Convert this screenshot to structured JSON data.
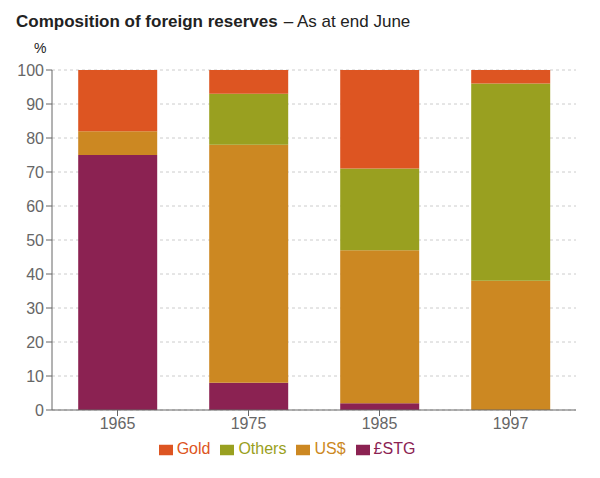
{
  "chart_data": {
    "type": "bar",
    "title": "Composition of foreign reserves",
    "subtitle": "– As at end June",
    "ylabel": "%",
    "categories": [
      "1965",
      "1975",
      "1985",
      "1997"
    ],
    "series": [
      {
        "name": "£STG",
        "color": "#8B2252",
        "values": [
          75,
          8,
          2,
          0
        ]
      },
      {
        "name": "US$",
        "color": "#CC8822",
        "values": [
          7,
          70,
          45,
          38
        ]
      },
      {
        "name": "Others",
        "color": "#99A020",
        "values": [
          0,
          15,
          24,
          58
        ]
      },
      {
        "name": "Gold",
        "color": "#DD5522",
        "values": [
          18,
          7,
          29,
          4
        ]
      }
    ],
    "stacked": true,
    "ylim": [
      0,
      100
    ],
    "yticks": [
      0,
      10,
      20,
      30,
      40,
      50,
      60,
      70,
      80,
      90,
      100
    ],
    "grid": true,
    "legend": "bottom"
  }
}
